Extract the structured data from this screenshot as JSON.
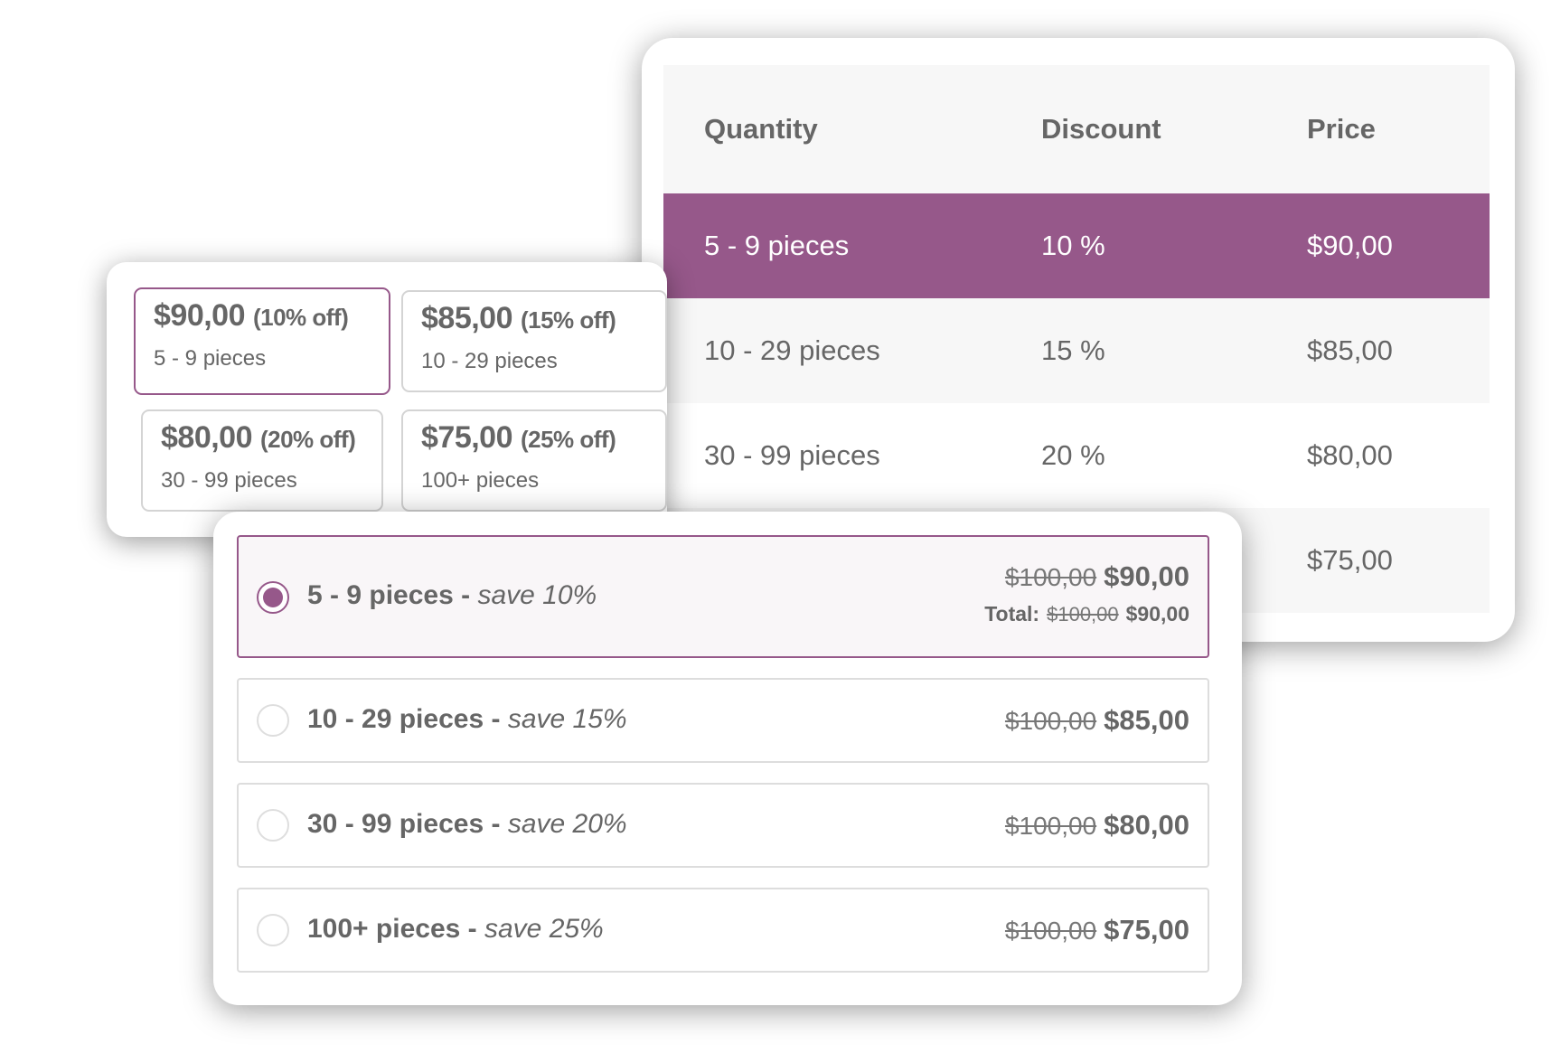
{
  "colors": {
    "accent": "#96588a",
    "text": "#666666",
    "border": "#dddddd",
    "row_alt": "#f7f7f7"
  },
  "table": {
    "headers": [
      "Quantity",
      "Discount",
      "Price"
    ],
    "rows": [
      {
        "quantity": "5 - 9 pieces",
        "discount": "10 %",
        "price": "$90,00",
        "active": true
      },
      {
        "quantity": "10 - 29 pieces",
        "discount": "15 %",
        "price": "$85,00"
      },
      {
        "quantity": "30 - 99 pieces",
        "discount": "20 %",
        "price": "$80,00"
      },
      {
        "quantity": "",
        "discount": "",
        "price": "$75,00"
      }
    ]
  },
  "price_boxes": [
    {
      "price": "$90,00",
      "off": "(10% off)",
      "quantity": "5 - 9 pieces",
      "selected": true
    },
    {
      "price": "$85,00",
      "off": "(15% off)",
      "quantity": "10 - 29 pieces"
    },
    {
      "price": "$80,00",
      "off": "(20% off)",
      "quantity": "30 - 99 pieces"
    },
    {
      "price": "$75,00",
      "off": "(25% off)",
      "quantity": "100+ pieces"
    }
  ],
  "radio_options": [
    {
      "quantity": "5 - 9 pieces",
      "separator": " - ",
      "save": "save 10%",
      "old_price": "$100,00",
      "new_price": "$90,00",
      "selected": true,
      "total": {
        "label": "Total:",
        "old": "$100,00",
        "new": "$90,00"
      }
    },
    {
      "quantity": "10 - 29 pieces",
      "separator": " - ",
      "save": "save 15%",
      "old_price": "$100,00",
      "new_price": "$85,00"
    },
    {
      "quantity": "30 - 99 pieces",
      "separator": " - ",
      "save": "save 20%",
      "old_price": "$100,00",
      "new_price": "$80,00"
    },
    {
      "quantity": "100+ pieces",
      "separator": " - ",
      "save": "save 25%",
      "old_price": "$100,00",
      "new_price": "$75,00"
    }
  ]
}
